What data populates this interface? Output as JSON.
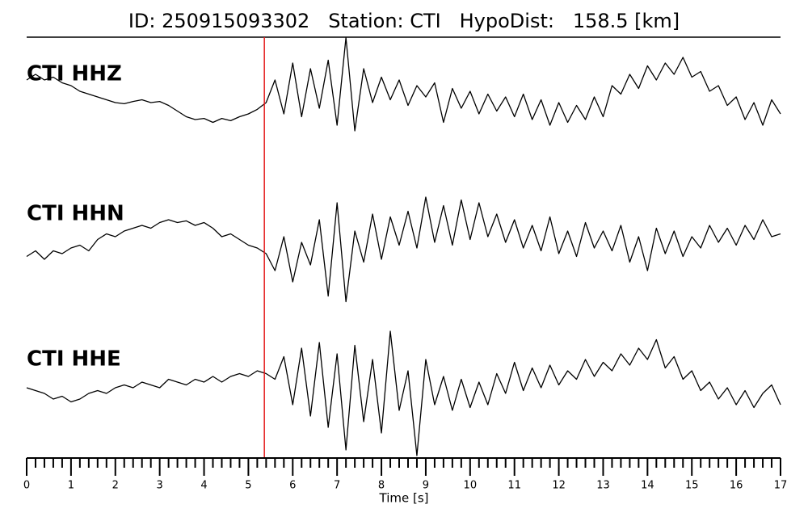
{
  "chart_data": {
    "type": "seismogram",
    "title": "ID: 250915093302   Station: CTI   HypoDist:   158.5 [km]",
    "xlabel": "Time [s]",
    "xlim": [
      0,
      17
    ],
    "xticks": [
      0,
      1,
      2,
      3,
      4,
      5,
      6,
      7,
      8,
      9,
      10,
      11,
      12,
      13,
      14,
      15,
      16,
      17
    ],
    "xminorticks": [
      0.2,
      0.4,
      0.6,
      0.8,
      1.2,
      1.4,
      1.6,
      1.8,
      2.2,
      2.4,
      2.6,
      2.8,
      3.2,
      3.4,
      3.6,
      3.8,
      4.2,
      4.4,
      4.6,
      4.8,
      5.2,
      5.4,
      5.6,
      5.8,
      6.2,
      6.4,
      6.6,
      6.8,
      7.2,
      7.4,
      7.6,
      7.8,
      8.2,
      8.4,
      8.6,
      8.8,
      9.2,
      9.4,
      9.6,
      9.8,
      10.2,
      10.4,
      10.6,
      10.8,
      11.2,
      11.4,
      11.6,
      11.8,
      12.2,
      12.4,
      12.6,
      12.8,
      13.2,
      13.4,
      13.6,
      13.8,
      14.2,
      14.4,
      14.6,
      14.8,
      15.2,
      15.4,
      15.6,
      15.8,
      16.2,
      16.4,
      16.6,
      16.8
    ],
    "ylim": [
      -1.25,
      1.25
    ],
    "pick_x": 5.36,
    "pick_color": "#e41a1c",
    "label_color": "#4e9a06",
    "line_color": "#000000",
    "x": [
      0,
      0.2,
      0.4,
      0.6,
      0.8,
      1,
      1.2,
      1.4,
      1.6,
      1.8,
      2,
      2.2,
      2.4,
      2.6,
      2.8,
      3,
      3.2,
      3.4,
      3.6,
      3.8,
      4,
      4.2,
      4.4,
      4.6,
      4.8,
      5,
      5.2,
      5.4,
      5.6,
      5.8,
      6,
      6.2,
      6.4,
      6.6,
      6.8,
      7,
      7.2,
      7.4,
      7.6,
      7.8,
      8,
      8.2,
      8.4,
      8.6,
      8.8,
      9,
      9.2,
      9.4,
      9.6,
      9.8,
      10,
      10.2,
      10.4,
      10.6,
      10.8,
      11,
      11.2,
      11.4,
      11.6,
      11.8,
      12,
      12.2,
      12.4,
      12.6,
      12.8,
      13,
      13.2,
      13.4,
      13.6,
      13.8,
      14,
      14.2,
      14.4,
      14.6,
      14.8,
      15,
      15.2,
      15.4,
      15.6,
      15.8,
      16,
      16.2,
      16.4,
      16.6,
      16.8,
      17
    ],
    "series": [
      {
        "name": "CTI HHZ",
        "values": [
          0.3,
          0.4,
          0.3,
          0.35,
          0.25,
          0.2,
          0.1,
          0.05,
          0.0,
          -0.05,
          -0.1,
          -0.12,
          -0.08,
          -0.05,
          -0.1,
          -0.08,
          -0.15,
          -0.25,
          -0.35,
          -0.4,
          -0.38,
          -0.45,
          -0.38,
          -0.42,
          -0.35,
          -0.3,
          -0.22,
          -0.1,
          0.3,
          -0.3,
          0.6,
          -0.35,
          0.5,
          -0.2,
          0.65,
          -0.5,
          1.05,
          -0.6,
          0.5,
          -0.1,
          0.35,
          -0.05,
          0.3,
          -0.15,
          0.2,
          0.0,
          0.25,
          -0.45,
          0.15,
          -0.2,
          0.1,
          -0.3,
          0.05,
          -0.25,
          0.0,
          -0.35,
          0.05,
          -0.4,
          -0.05,
          -0.5,
          -0.1,
          -0.45,
          -0.15,
          -0.4,
          0.0,
          -0.35,
          0.2,
          0.05,
          0.4,
          0.15,
          0.55,
          0.3,
          0.6,
          0.4,
          0.7,
          0.35,
          0.45,
          0.1,
          0.2,
          -0.15,
          0.0,
          -0.4,
          -0.1,
          -0.5,
          -0.05,
          -0.3
        ]
      },
      {
        "name": "CTI HHN",
        "values": [
          -0.25,
          -0.15,
          -0.3,
          -0.15,
          -0.2,
          -0.1,
          -0.05,
          -0.15,
          0.05,
          0.15,
          0.1,
          0.2,
          0.25,
          0.3,
          0.25,
          0.35,
          0.4,
          0.35,
          0.38,
          0.3,
          0.35,
          0.25,
          0.1,
          0.15,
          0.05,
          -0.05,
          -0.1,
          -0.2,
          -0.5,
          0.1,
          -0.7,
          0.0,
          -0.4,
          0.4,
          -0.95,
          0.7,
          -1.05,
          0.2,
          -0.35,
          0.5,
          -0.3,
          0.45,
          -0.05,
          0.55,
          -0.1,
          0.8,
          0.0,
          0.65,
          -0.05,
          0.75,
          0.05,
          0.7,
          0.1,
          0.5,
          0.0,
          0.4,
          -0.1,
          0.3,
          -0.15,
          0.45,
          -0.2,
          0.2,
          -0.25,
          0.35,
          -0.1,
          0.2,
          -0.15,
          0.3,
          -0.35,
          0.1,
          -0.5,
          0.25,
          -0.2,
          0.2,
          -0.25,
          0.1,
          -0.1,
          0.3,
          0.0,
          0.25,
          -0.05,
          0.3,
          0.05,
          0.4,
          0.1,
          0.15
        ]
      },
      {
        "name": "CTI HHE",
        "values": [
          0.0,
          -0.05,
          -0.1,
          -0.2,
          -0.15,
          -0.25,
          -0.2,
          -0.1,
          -0.05,
          -0.1,
          0.0,
          0.05,
          0.0,
          0.1,
          0.05,
          0.0,
          0.15,
          0.1,
          0.05,
          0.15,
          0.1,
          0.2,
          0.1,
          0.2,
          0.25,
          0.2,
          0.3,
          0.25,
          0.15,
          0.55,
          -0.3,
          0.7,
          -0.5,
          0.8,
          -0.7,
          0.6,
          -1.1,
          0.75,
          -0.6,
          0.5,
          -0.8,
          1.0,
          -0.4,
          0.3,
          -1.2,
          0.5,
          -0.3,
          0.2,
          -0.4,
          0.15,
          -0.35,
          0.1,
          -0.3,
          0.25,
          -0.1,
          0.45,
          -0.05,
          0.35,
          0.0,
          0.4,
          0.05,
          0.3,
          0.15,
          0.5,
          0.2,
          0.45,
          0.3,
          0.6,
          0.4,
          0.7,
          0.5,
          0.85,
          0.35,
          0.55,
          0.15,
          0.3,
          -0.05,
          0.1,
          -0.2,
          0.0,
          -0.3,
          -0.05,
          -0.35,
          -0.1,
          0.05,
          -0.3
        ]
      }
    ]
  }
}
